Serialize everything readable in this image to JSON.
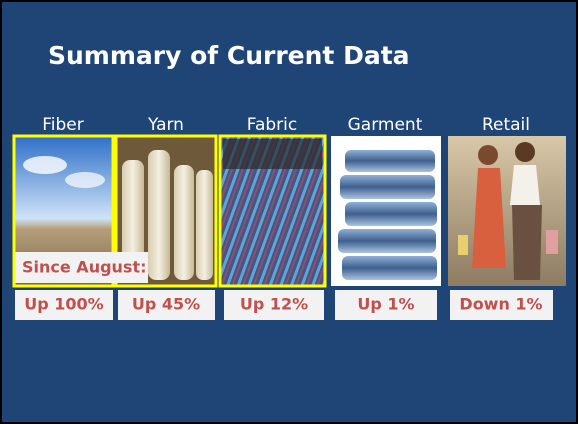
{
  "slide": {
    "title": "Summary of Current Data",
    "note": "Since August:",
    "stages": [
      {
        "label": "Fiber",
        "change": "Up 100%"
      },
      {
        "label": "Yarn",
        "change": "Up 45%"
      },
      {
        "label": "Fabric",
        "change": "Up 12%"
      },
      {
        "label": "Garment",
        "change": "Up 1%"
      },
      {
        "label": "Retail",
        "change": "Down 1%"
      }
    ]
  }
}
